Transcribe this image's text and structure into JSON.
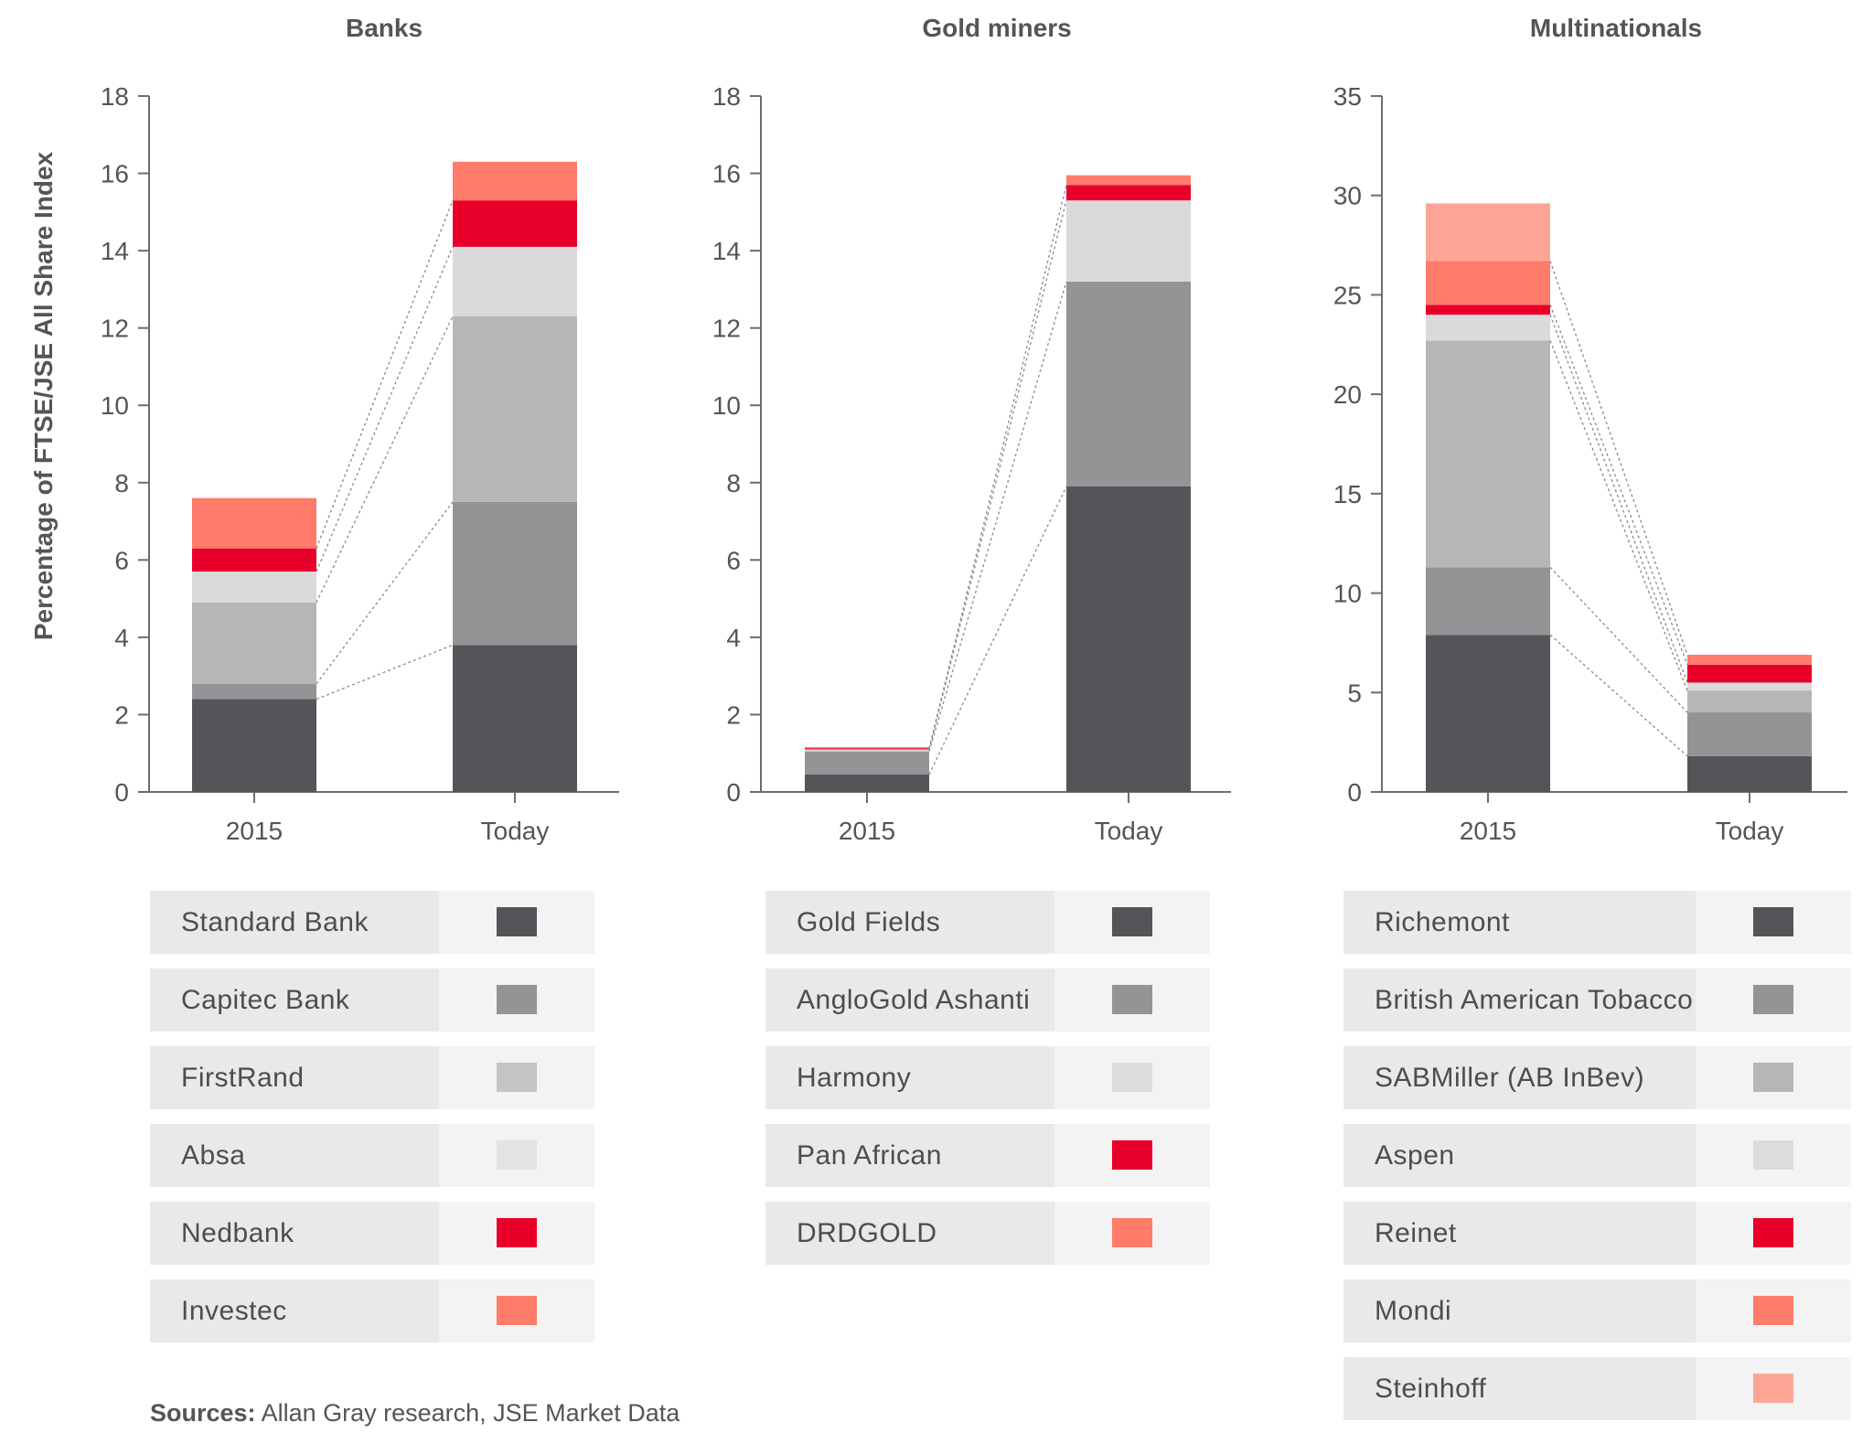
{
  "y_axis_label": "Percentage of FTSE/JSE All Share Index",
  "source": {
    "label": "Sources:",
    "text": "Allan Gray research, JSE Market Data"
  },
  "chart_data": [
    {
      "type": "bar",
      "stacked": true,
      "title": "Banks",
      "categories": [
        "2015",
        "Today"
      ],
      "ylabel": "Percentage of FTSE/JSE All Share Index",
      "ylim": [
        0,
        18
      ],
      "yticks": [
        0,
        2,
        4,
        6,
        8,
        10,
        12,
        14,
        16,
        18
      ],
      "series": [
        {
          "name": "Standard Bank",
          "color": "#545559",
          "values": [
            2.4,
            3.8
          ]
        },
        {
          "name": "Capitec Bank",
          "color": "#949497",
          "values": [
            0.4,
            3.7
          ]
        },
        {
          "name": "FirstRand",
          "color": "#b6b6b8",
          "values": [
            2.1,
            4.8
          ]
        },
        {
          "name": "Absa",
          "color": "#dadadc",
          "values": [
            0.8,
            1.8
          ]
        },
        {
          "name": "Nedbank",
          "color": "#e8002a",
          "values": [
            0.6,
            1.2
          ]
        },
        {
          "name": "Investec",
          "color": "#ff7b6a",
          "values": [
            1.3,
            1.0
          ]
        }
      ]
    },
    {
      "type": "bar",
      "stacked": true,
      "title": "Gold miners",
      "categories": [
        "2015",
        "Today"
      ],
      "ylim": [
        0,
        18
      ],
      "yticks": [
        0,
        2,
        4,
        6,
        8,
        10,
        12,
        14,
        16,
        18
      ],
      "series": [
        {
          "name": "Gold Fields",
          "color": "#545559",
          "values": [
            0.45,
            7.9
          ]
        },
        {
          "name": "AngloGold Ashanti",
          "color": "#949497",
          "values": [
            0.6,
            5.3
          ]
        },
        {
          "name": "Harmony",
          "color": "#dadadc",
          "values": [
            0.05,
            2.1
          ]
        },
        {
          "name": "Pan African",
          "color": "#e8002a",
          "values": [
            0.03,
            0.4
          ]
        },
        {
          "name": "DRDGOLD",
          "color": "#ff7b6a",
          "values": [
            0.03,
            0.25
          ]
        }
      ]
    },
    {
      "type": "bar",
      "stacked": true,
      "title": "Multinationals",
      "categories": [
        "2015",
        "Today"
      ],
      "ylim": [
        0,
        35
      ],
      "yticks": [
        0,
        5,
        10,
        15,
        20,
        25,
        30,
        35
      ],
      "series": [
        {
          "name": "Richemont",
          "color": "#545559",
          "values": [
            7.9,
            1.8
          ]
        },
        {
          "name": "British American Tobacco",
          "color": "#949497",
          "values": [
            3.4,
            2.2
          ]
        },
        {
          "name": "SABMiller (AB InBev)",
          "color": "#b6b6b8",
          "values": [
            11.4,
            1.1
          ]
        },
        {
          "name": "Aspen",
          "color": "#dadadc",
          "values": [
            1.3,
            0.4
          ]
        },
        {
          "name": "Reinet",
          "color": "#e8002a",
          "values": [
            0.5,
            0.9
          ]
        },
        {
          "name": "Mondi",
          "color": "#ff7b6a",
          "values": [
            2.2,
            0.5
          ]
        },
        {
          "name": "Steinhoff",
          "color": "#ffa596",
          "values": [
            2.9,
            0.0
          ]
        }
      ]
    }
  ],
  "legends": [
    {
      "items": [
        {
          "name": "Standard Bank",
          "color": "#545559"
        },
        {
          "name": "Capitec Bank",
          "color": "#949497"
        },
        {
          "name": "FirstRand",
          "color": "#c4c4c6"
        },
        {
          "name": "Absa",
          "color": "#e3e3e4"
        },
        {
          "name": "Nedbank",
          "color": "#e8002a"
        },
        {
          "name": "Investec",
          "color": "#ff7b6a"
        }
      ]
    },
    {
      "items": [
        {
          "name": "Gold Fields",
          "color": "#545559"
        },
        {
          "name": "AngloGold Ashanti",
          "color": "#949497"
        },
        {
          "name": "Harmony",
          "color": "#dcdcde"
        },
        {
          "name": "Pan African",
          "color": "#e8002a"
        },
        {
          "name": "DRDGOLD",
          "color": "#ff7b6a"
        }
      ]
    },
    {
      "items": [
        {
          "name": "Richemont",
          "color": "#545559"
        },
        {
          "name": "British American Tobacco",
          "color": "#949497"
        },
        {
          "name": "SABMiller (AB InBev)",
          "color": "#b6b6b8"
        },
        {
          "name": "Aspen",
          "color": "#dcdcde"
        },
        {
          "name": "Reinet",
          "color": "#e8002a"
        },
        {
          "name": "Mondi",
          "color": "#ff7b6a"
        },
        {
          "name": "Steinhoff",
          "color": "#ffa596"
        }
      ]
    }
  ]
}
